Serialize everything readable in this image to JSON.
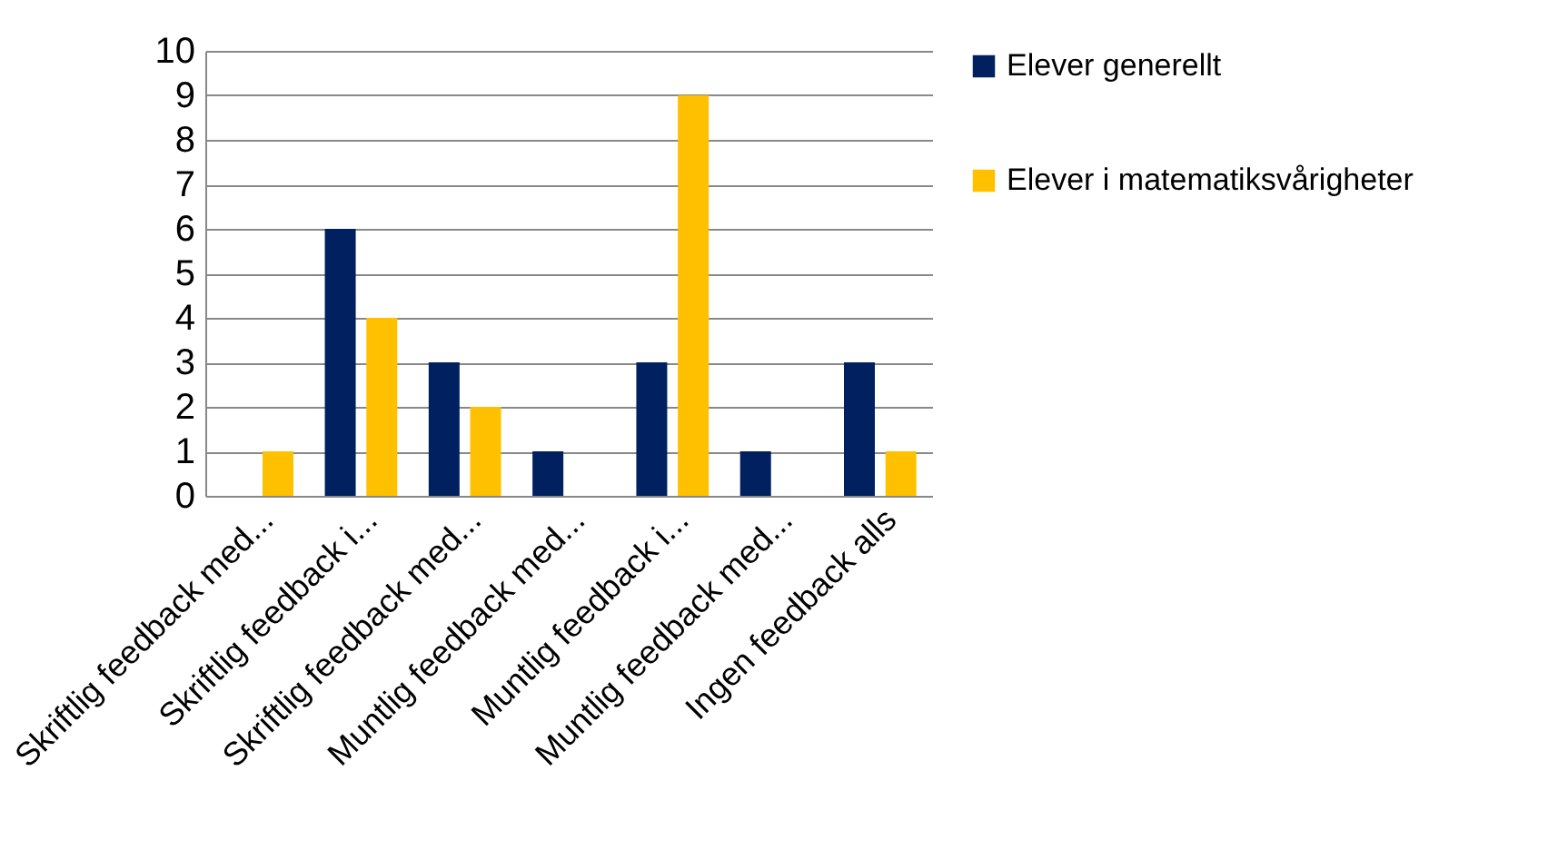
{
  "chart_data": {
    "type": "bar",
    "categories": [
      "Skriftlig feedback med...",
      "Skriftlig feedback i...",
      "Skriftlig feedback med...",
      "Muntlig feedback med...",
      "Muntlig feedback i...",
      "Muntlig feedback med...",
      "Ingen feedback alls"
    ],
    "series": [
      {
        "name": "Elever generellt",
        "color": "#002060",
        "values": [
          0,
          6,
          3,
          1,
          3,
          1,
          3
        ]
      },
      {
        "name": "Elever i matematiksvårigheter",
        "color": "#ffc000",
        "values": [
          1,
          4,
          2,
          0,
          9,
          0,
          1
        ]
      }
    ],
    "ylim": [
      0,
      10
    ],
    "yticks": [
      0,
      1,
      2,
      3,
      4,
      5,
      6,
      7,
      8,
      9,
      10
    ],
    "grid": "y",
    "legend": "right"
  }
}
